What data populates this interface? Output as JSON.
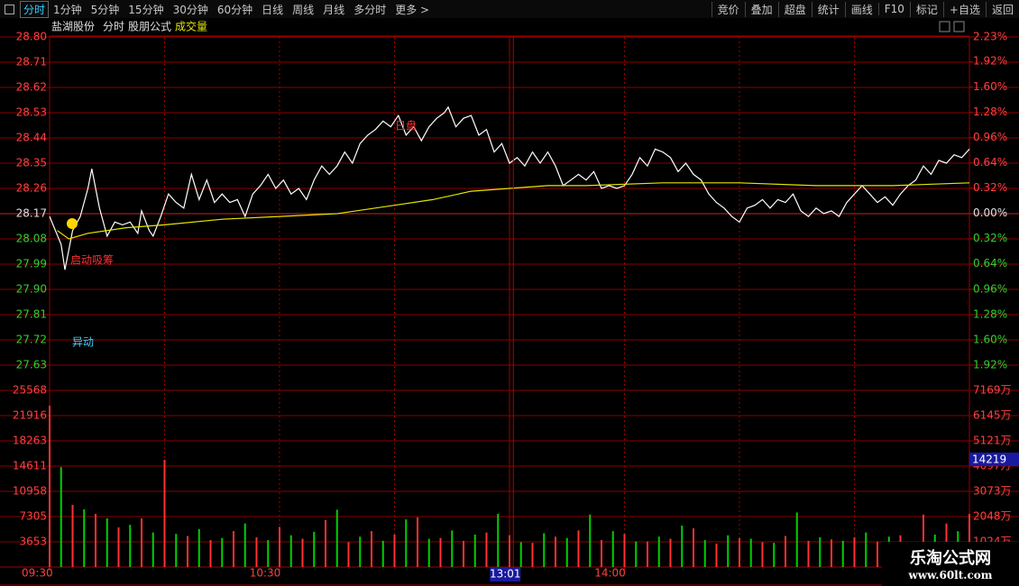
{
  "toolbar": {
    "left": [
      "分时",
      "1分钟",
      "5分钟",
      "15分钟",
      "30分钟",
      "60分钟",
      "日线",
      "周线",
      "月线",
      "多分时",
      "更多 >"
    ],
    "right": [
      "竞价",
      "叠加",
      "超盘",
      "统计",
      "画线",
      "F10",
      "标记",
      "+自选",
      "返回"
    ]
  },
  "header": {
    "stock": "盐湖股份",
    "period": "分时",
    "formula": "股朋公式",
    "indicator": "成交量"
  },
  "annotations": {
    "start": "启动吸筹",
    "peak": "日盘",
    "alert": "异动"
  },
  "watermark": {
    "title": "乐淘公式网",
    "url": "www.60lt.com"
  },
  "chart_data": [
    {
      "type": "line",
      "xlim": [
        0,
        240
      ],
      "xgrid": [
        30,
        60,
        90,
        120,
        150,
        180,
        210
      ],
      "baseline": 28.17,
      "ylim": [
        27.63,
        28.8
      ],
      "yticks": [
        {
          "value": 28.8,
          "label": "28.80"
        },
        28.71,
        28.62,
        28.53,
        28.44,
        28.35,
        28.26,
        28.17,
        28.08,
        27.99,
        {
          "value": 27.9,
          "label": "27.90"
        },
        27.81,
        27.72,
        27.63
      ],
      "y2lim": [
        -1.92,
        2.23
      ],
      "y2ticks": [
        {
          "value": 2.23,
          "label": "2.23%"
        },
        {
          "value": 1.92,
          "label": "1.92%"
        },
        {
          "value": 1.6,
          "label": "1.60%"
        },
        {
          "value": 1.28,
          "label": "1.28%"
        },
        {
          "value": 0.96,
          "label": "0.96%"
        },
        {
          "value": 0.64,
          "label": "0.64%"
        },
        {
          "value": 0.32,
          "label": "0.32%"
        },
        {
          "value": 0,
          "label": "0.00%"
        },
        {
          "value": -0.32,
          "label": "0.32%"
        },
        {
          "value": -0.64,
          "label": "0.64%"
        },
        {
          "value": -0.96,
          "label": "0.96%"
        },
        {
          "value": -1.28,
          "label": "1.28%"
        },
        {
          "value": -1.6,
          "label": "1.60%"
        },
        {
          "value": -1.92,
          "label": "1.92%"
        }
      ],
      "series": [
        {
          "color": "#ffffff",
          "x": [
            0,
            3,
            4,
            6,
            8,
            10,
            11,
            13,
            15,
            17,
            19,
            21,
            23,
            24,
            26,
            27,
            29,
            31,
            33,
            35,
            37,
            39,
            41,
            43,
            45,
            47,
            49,
            51,
            53,
            55,
            57,
            59,
            61,
            63,
            65,
            67,
            69,
            71,
            73,
            75,
            77,
            79,
            81,
            83,
            85,
            87,
            89,
            91,
            93,
            95,
            97,
            99,
            101,
            103,
            104,
            106,
            108,
            110,
            112,
            114,
            116,
            118,
            120,
            122,
            124,
            126,
            128,
            130,
            132,
            134,
            136,
            138,
            140,
            142,
            144,
            146,
            148,
            150,
            152,
            154,
            156,
            158,
            160,
            162,
            164,
            166,
            168,
            170,
            172,
            174,
            176,
            178,
            180,
            182,
            184,
            186,
            188,
            190,
            192,
            194,
            196,
            198,
            200,
            202,
            204,
            206,
            208,
            210,
            212,
            214,
            216,
            218,
            220,
            222,
            224,
            226,
            228,
            230,
            232,
            234,
            236,
            238,
            240
          ],
          "values": [
            28.16,
            28.06,
            27.97,
            28.11,
            28.16,
            28.26,
            28.33,
            28.19,
            28.09,
            28.14,
            28.13,
            28.14,
            28.1,
            28.18,
            28.11,
            28.09,
            28.16,
            28.24,
            28.21,
            28.19,
            28.31,
            28.22,
            28.29,
            28.21,
            28.24,
            28.21,
            28.22,
            28.16,
            28.24,
            28.27,
            28.31,
            28.26,
            28.29,
            28.24,
            28.26,
            28.22,
            28.29,
            28.34,
            28.31,
            28.34,
            28.39,
            28.35,
            28.42,
            28.45,
            28.47,
            28.5,
            28.48,
            28.52,
            28.45,
            28.48,
            28.43,
            28.48,
            28.51,
            28.53,
            28.55,
            28.48,
            28.51,
            28.52,
            28.45,
            28.47,
            28.39,
            28.42,
            28.35,
            28.37,
            28.34,
            28.39,
            28.35,
            28.39,
            28.34,
            28.27,
            28.29,
            28.31,
            28.29,
            28.32,
            28.26,
            28.27,
            28.26,
            28.27,
            28.31,
            28.37,
            28.34,
            28.4,
            28.39,
            28.37,
            28.32,
            28.35,
            28.31,
            28.29,
            28.24,
            28.21,
            28.19,
            28.16,
            28.14,
            28.19,
            28.2,
            28.22,
            28.19,
            28.22,
            28.21,
            28.24,
            28.18,
            28.16,
            28.19,
            28.17,
            28.18,
            28.16,
            28.21,
            28.24,
            28.27,
            28.24,
            28.21,
            28.23,
            28.2,
            28.24,
            28.27,
            28.29,
            28.34,
            28.31,
            28.36,
            28.35,
            28.38,
            28.37,
            28.4
          ]
        },
        {
          "color": "#e6e600",
          "x": [
            2,
            5,
            10,
            20,
            30,
            45,
            60,
            75,
            90,
            100,
            110,
            120,
            130,
            140,
            160,
            180,
            200,
            220,
            240
          ],
          "values": [
            28.11,
            28.08,
            28.1,
            28.12,
            28.13,
            28.15,
            28.16,
            28.17,
            28.2,
            28.22,
            28.25,
            28.26,
            28.27,
            28.27,
            28.28,
            28.28,
            28.27,
            28.27,
            28.28
          ]
        }
      ]
    },
    {
      "type": "bar",
      "xlim": [
        0,
        240
      ],
      "ylim": [
        0,
        25568
      ],
      "yticks": [
        25568,
        21916,
        18263,
        14611,
        10958,
        7305,
        3653
      ],
      "y2lim": [
        0,
        7169
      ],
      "y2ticks": [
        {
          "value": 7169,
          "label": "7169万"
        },
        {
          "value": 6145,
          "label": "6145万"
        },
        {
          "value": 5121,
          "label": "5121万"
        },
        {
          "value": 4097,
          "label": "4097万"
        },
        {
          "value": 3073,
          "label": "3073万"
        },
        {
          "value": 2048,
          "label": "2048万"
        },
        {
          "value": 1024,
          "label": "1024万"
        }
      ],
      "xticks": [
        {
          "value": 0,
          "label": "09:30"
        },
        {
          "value": 60,
          "label": "10:30"
        },
        {
          "value": 150,
          "label": "14:00"
        }
      ],
      "cursor": {
        "x": 121,
        "label": "13:01",
        "value": 14219
      },
      "series": [
        {
          "color": "#ff3232",
          "x": [
            0,
            6,
            12,
            18,
            24,
            30,
            36,
            42,
            48,
            54,
            60,
            66,
            72,
            78,
            84,
            90,
            96,
            102,
            108,
            114,
            120,
            126,
            132,
            138,
            144,
            150,
            156,
            162,
            168,
            174,
            180,
            186,
            192,
            198,
            204,
            210,
            216,
            222,
            228,
            234,
            240
          ],
          "values": [
            23340,
            9000,
            7700,
            5740,
            7040,
            15520,
            4500,
            3900,
            5200,
            4300,
            5800,
            4100,
            6800,
            3600,
            5200,
            4700,
            7200,
            4200,
            3800,
            5000,
            4600,
            3500,
            4400,
            5300,
            3900,
            4800,
            3700,
            4100,
            5600,
            3400,
            4200,
            3600,
            4500,
            3800,
            4000,
            4300,
            3700,
            4600,
            7600,
            6300,
            7700
          ]
        },
        {
          "color": "#00d000",
          "x": [
            3,
            9,
            15,
            21,
            27,
            33,
            39,
            45,
            51,
            57,
            63,
            69,
            75,
            81,
            87,
            93,
            99,
            105,
            111,
            117,
            123,
            129,
            135,
            141,
            147,
            153,
            159,
            165,
            171,
            177,
            183,
            189,
            195,
            201,
            207,
            213,
            219,
            225,
            231,
            237
          ],
          "values": [
            14470,
            8350,
            7040,
            6100,
            5000,
            4800,
            5500,
            4200,
            6300,
            3900,
            4600,
            5100,
            8300,
            4400,
            3800,
            6900,
            4100,
            5300,
            4700,
            7700,
            3600,
            4900,
            4200,
            7600,
            5200,
            3700,
            4400,
            6000,
            3900,
            4600,
            4100,
            3500,
            7900,
            4300,
            3800,
            5000,
            4400,
            3600,
            4700,
            5200
          ]
        }
      ]
    }
  ]
}
